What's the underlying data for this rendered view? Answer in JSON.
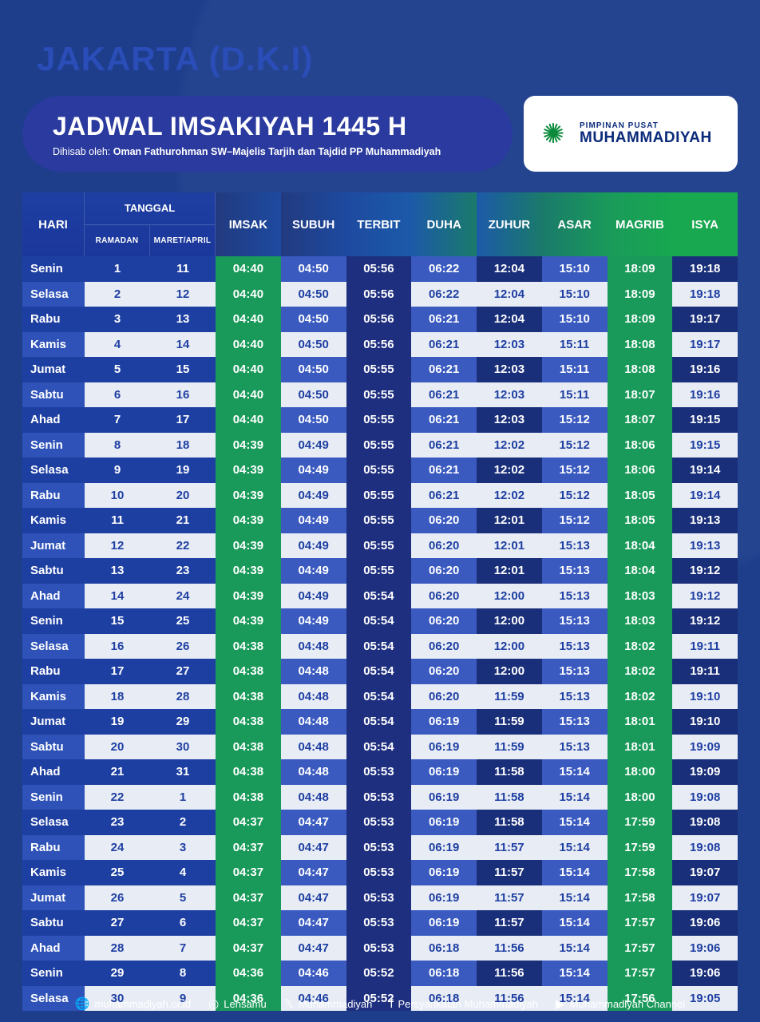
{
  "location": "JAKARTA (D.K.I)",
  "title": "JADWAL IMSAKIYAH 1445 H",
  "subtitle_prefix": "Dihisab oleh: ",
  "subtitle_bold": "Oman Fathurohman SW–Majelis Tarjih dan Tajdid PP Muhammadiyah",
  "org": {
    "small": "PIMPINAN PUSAT",
    "big": "MUHAMMADIYAH"
  },
  "header": {
    "hari": "HARI",
    "tanggal": "TANGGAL",
    "ramadan": "RAMADAN",
    "maret_april": "MARET/APRIL",
    "cols": [
      "IMSAK",
      "SUBUH",
      "TERBIT",
      "DUHA",
      "ZUHUR",
      "ASAR",
      "MAGRIB",
      "ISYA"
    ]
  },
  "colors": {
    "page_bg": "#1a3a8a",
    "location_text": "#2a4db8",
    "pill_bg": "#2a3a9e",
    "org_box_bg": "#ffffff",
    "org_text": "#0a2a7a",
    "org_logo": "#0a8a3a",
    "stripe_a": "#1e3fa2",
    "stripe_b_bg": "#e8ecf5",
    "stripe_b_text": "#1e3fa2",
    "header_gradient": [
      "#223a7f",
      "#1d4aa0",
      "#1c5aa8",
      "#1a7a6a",
      "#1a9a5a",
      "#18a850"
    ],
    "col_imsak": "#1a9a5a",
    "col_subuh": "#6a8ad0",
    "col_terbit": "#223a8f",
    "col_duha": "#6a8ad0",
    "col_zuhur": "#223a8f",
    "col_asar": "#6a8ad0",
    "col_magrib": "#1a9a5a",
    "col_isya": "#223a8f"
  },
  "footer": [
    {
      "icon": "🌐",
      "text": "muhammadiyah.or.id"
    },
    {
      "icon": "◎",
      "text": "Lensamu"
    },
    {
      "icon": "𝕏",
      "text": "Muhammadiyah"
    },
    {
      "icon": "f",
      "text": "Persyarikatan Muhammadiyah"
    },
    {
      "icon": "▶",
      "text": "Muhammadiyah Channel"
    }
  ],
  "rows": [
    {
      "hari": "Senin",
      "ram": "1",
      "ma": "11",
      "t": [
        "04:40",
        "04:50",
        "05:56",
        "06:22",
        "12:04",
        "15:10",
        "18:09",
        "19:18"
      ]
    },
    {
      "hari": "Selasa",
      "ram": "2",
      "ma": "12",
      "t": [
        "04:40",
        "04:50",
        "05:56",
        "06:22",
        "12:04",
        "15:10",
        "18:09",
        "19:18"
      ]
    },
    {
      "hari": "Rabu",
      "ram": "3",
      "ma": "13",
      "t": [
        "04:40",
        "04:50",
        "05:56",
        "06:21",
        "12:04",
        "15:10",
        "18:09",
        "19:17"
      ]
    },
    {
      "hari": "Kamis",
      "ram": "4",
      "ma": "14",
      "t": [
        "04:40",
        "04:50",
        "05:56",
        "06:21",
        "12:03",
        "15:11",
        "18:08",
        "19:17"
      ]
    },
    {
      "hari": "Jumat",
      "ram": "5",
      "ma": "15",
      "t": [
        "04:40",
        "04:50",
        "05:55",
        "06:21",
        "12:03",
        "15:11",
        "18:08",
        "19:16"
      ]
    },
    {
      "hari": "Sabtu",
      "ram": "6",
      "ma": "16",
      "t": [
        "04:40",
        "04:50",
        "05:55",
        "06:21",
        "12:03",
        "15:11",
        "18:07",
        "19:16"
      ]
    },
    {
      "hari": "Ahad",
      "ram": "7",
      "ma": "17",
      "t": [
        "04:40",
        "04:50",
        "05:55",
        "06:21",
        "12:03",
        "15:12",
        "18:07",
        "19:15"
      ]
    },
    {
      "hari": "Senin",
      "ram": "8",
      "ma": "18",
      "t": [
        "04:39",
        "04:49",
        "05:55",
        "06:21",
        "12:02",
        "15:12",
        "18:06",
        "19:15"
      ]
    },
    {
      "hari": "Selasa",
      "ram": "9",
      "ma": "19",
      "t": [
        "04:39",
        "04:49",
        "05:55",
        "06:21",
        "12:02",
        "15:12",
        "18:06",
        "19:14"
      ]
    },
    {
      "hari": "Rabu",
      "ram": "10",
      "ma": "20",
      "t": [
        "04:39",
        "04:49",
        "05:55",
        "06:21",
        "12:02",
        "15:12",
        "18:05",
        "19:14"
      ]
    },
    {
      "hari": "Kamis",
      "ram": "11",
      "ma": "21",
      "t": [
        "04:39",
        "04:49",
        "05:55",
        "06:20",
        "12:01",
        "15:12",
        "18:05",
        "19:13"
      ]
    },
    {
      "hari": "Jumat",
      "ram": "12",
      "ma": "22",
      "t": [
        "04:39",
        "04:49",
        "05:55",
        "06:20",
        "12:01",
        "15:13",
        "18:04",
        "19:13"
      ]
    },
    {
      "hari": "Sabtu",
      "ram": "13",
      "ma": "23",
      "t": [
        "04:39",
        "04:49",
        "05:55",
        "06:20",
        "12:01",
        "15:13",
        "18:04",
        "19:12"
      ]
    },
    {
      "hari": "Ahad",
      "ram": "14",
      "ma": "24",
      "t": [
        "04:39",
        "04:49",
        "05:54",
        "06:20",
        "12:00",
        "15:13",
        "18:03",
        "19:12"
      ]
    },
    {
      "hari": "Senin",
      "ram": "15",
      "ma": "25",
      "t": [
        "04:39",
        "04:49",
        "05:54",
        "06:20",
        "12:00",
        "15:13",
        "18:03",
        "19:12"
      ]
    },
    {
      "hari": "Selasa",
      "ram": "16",
      "ma": "26",
      "t": [
        "04:38",
        "04:48",
        "05:54",
        "06:20",
        "12:00",
        "15:13",
        "18:02",
        "19:11"
      ]
    },
    {
      "hari": "Rabu",
      "ram": "17",
      "ma": "27",
      "t": [
        "04:38",
        "04:48",
        "05:54",
        "06:20",
        "12:00",
        "15:13",
        "18:02",
        "19:11"
      ]
    },
    {
      "hari": "Kamis",
      "ram": "18",
      "ma": "28",
      "t": [
        "04:38",
        "04:48",
        "05:54",
        "06:20",
        "11:59",
        "15:13",
        "18:02",
        "19:10"
      ]
    },
    {
      "hari": "Jumat",
      "ram": "19",
      "ma": "29",
      "t": [
        "04:38",
        "04:48",
        "05:54",
        "06:19",
        "11:59",
        "15:13",
        "18:01",
        "19:10"
      ]
    },
    {
      "hari": "Sabtu",
      "ram": "20",
      "ma": "30",
      "t": [
        "04:38",
        "04:48",
        "05:54",
        "06:19",
        "11:59",
        "15:13",
        "18:01",
        "19:09"
      ]
    },
    {
      "hari": "Ahad",
      "ram": "21",
      "ma": "31",
      "t": [
        "04:38",
        "04:48",
        "05:53",
        "06:19",
        "11:58",
        "15:14",
        "18:00",
        "19:09"
      ]
    },
    {
      "hari": "Senin",
      "ram": "22",
      "ma": "1",
      "t": [
        "04:38",
        "04:48",
        "05:53",
        "06:19",
        "11:58",
        "15:14",
        "18:00",
        "19:08"
      ]
    },
    {
      "hari": "Selasa",
      "ram": "23",
      "ma": "2",
      "t": [
        "04:37",
        "04:47",
        "05:53",
        "06:19",
        "11:58",
        "15:14",
        "17:59",
        "19:08"
      ]
    },
    {
      "hari": "Rabu",
      "ram": "24",
      "ma": "3",
      "t": [
        "04:37",
        "04:47",
        "05:53",
        "06:19",
        "11:57",
        "15:14",
        "17:59",
        "19:08"
      ]
    },
    {
      "hari": "Kamis",
      "ram": "25",
      "ma": "4",
      "t": [
        "04:37",
        "04:47",
        "05:53",
        "06:19",
        "11:57",
        "15:14",
        "17:58",
        "19:07"
      ]
    },
    {
      "hari": "Jumat",
      "ram": "26",
      "ma": "5",
      "t": [
        "04:37",
        "04:47",
        "05:53",
        "06:19",
        "11:57",
        "15:14",
        "17:58",
        "19:07"
      ]
    },
    {
      "hari": "Sabtu",
      "ram": "27",
      "ma": "6",
      "t": [
        "04:37",
        "04:47",
        "05:53",
        "06:19",
        "11:57",
        "15:14",
        "17:57",
        "19:06"
      ]
    },
    {
      "hari": "Ahad",
      "ram": "28",
      "ma": "7",
      "t": [
        "04:37",
        "04:47",
        "05:53",
        "06:18",
        "11:56",
        "15:14",
        "17:57",
        "19:06"
      ]
    },
    {
      "hari": "Senin",
      "ram": "29",
      "ma": "8",
      "t": [
        "04:36",
        "04:46",
        "05:52",
        "06:18",
        "11:56",
        "15:14",
        "17:57",
        "19:06"
      ]
    },
    {
      "hari": "Selasa",
      "ram": "30",
      "ma": "9",
      "t": [
        "04:36",
        "04:46",
        "05:52",
        "06:18",
        "11:56",
        "15:14",
        "17:56",
        "19:05"
      ]
    }
  ]
}
